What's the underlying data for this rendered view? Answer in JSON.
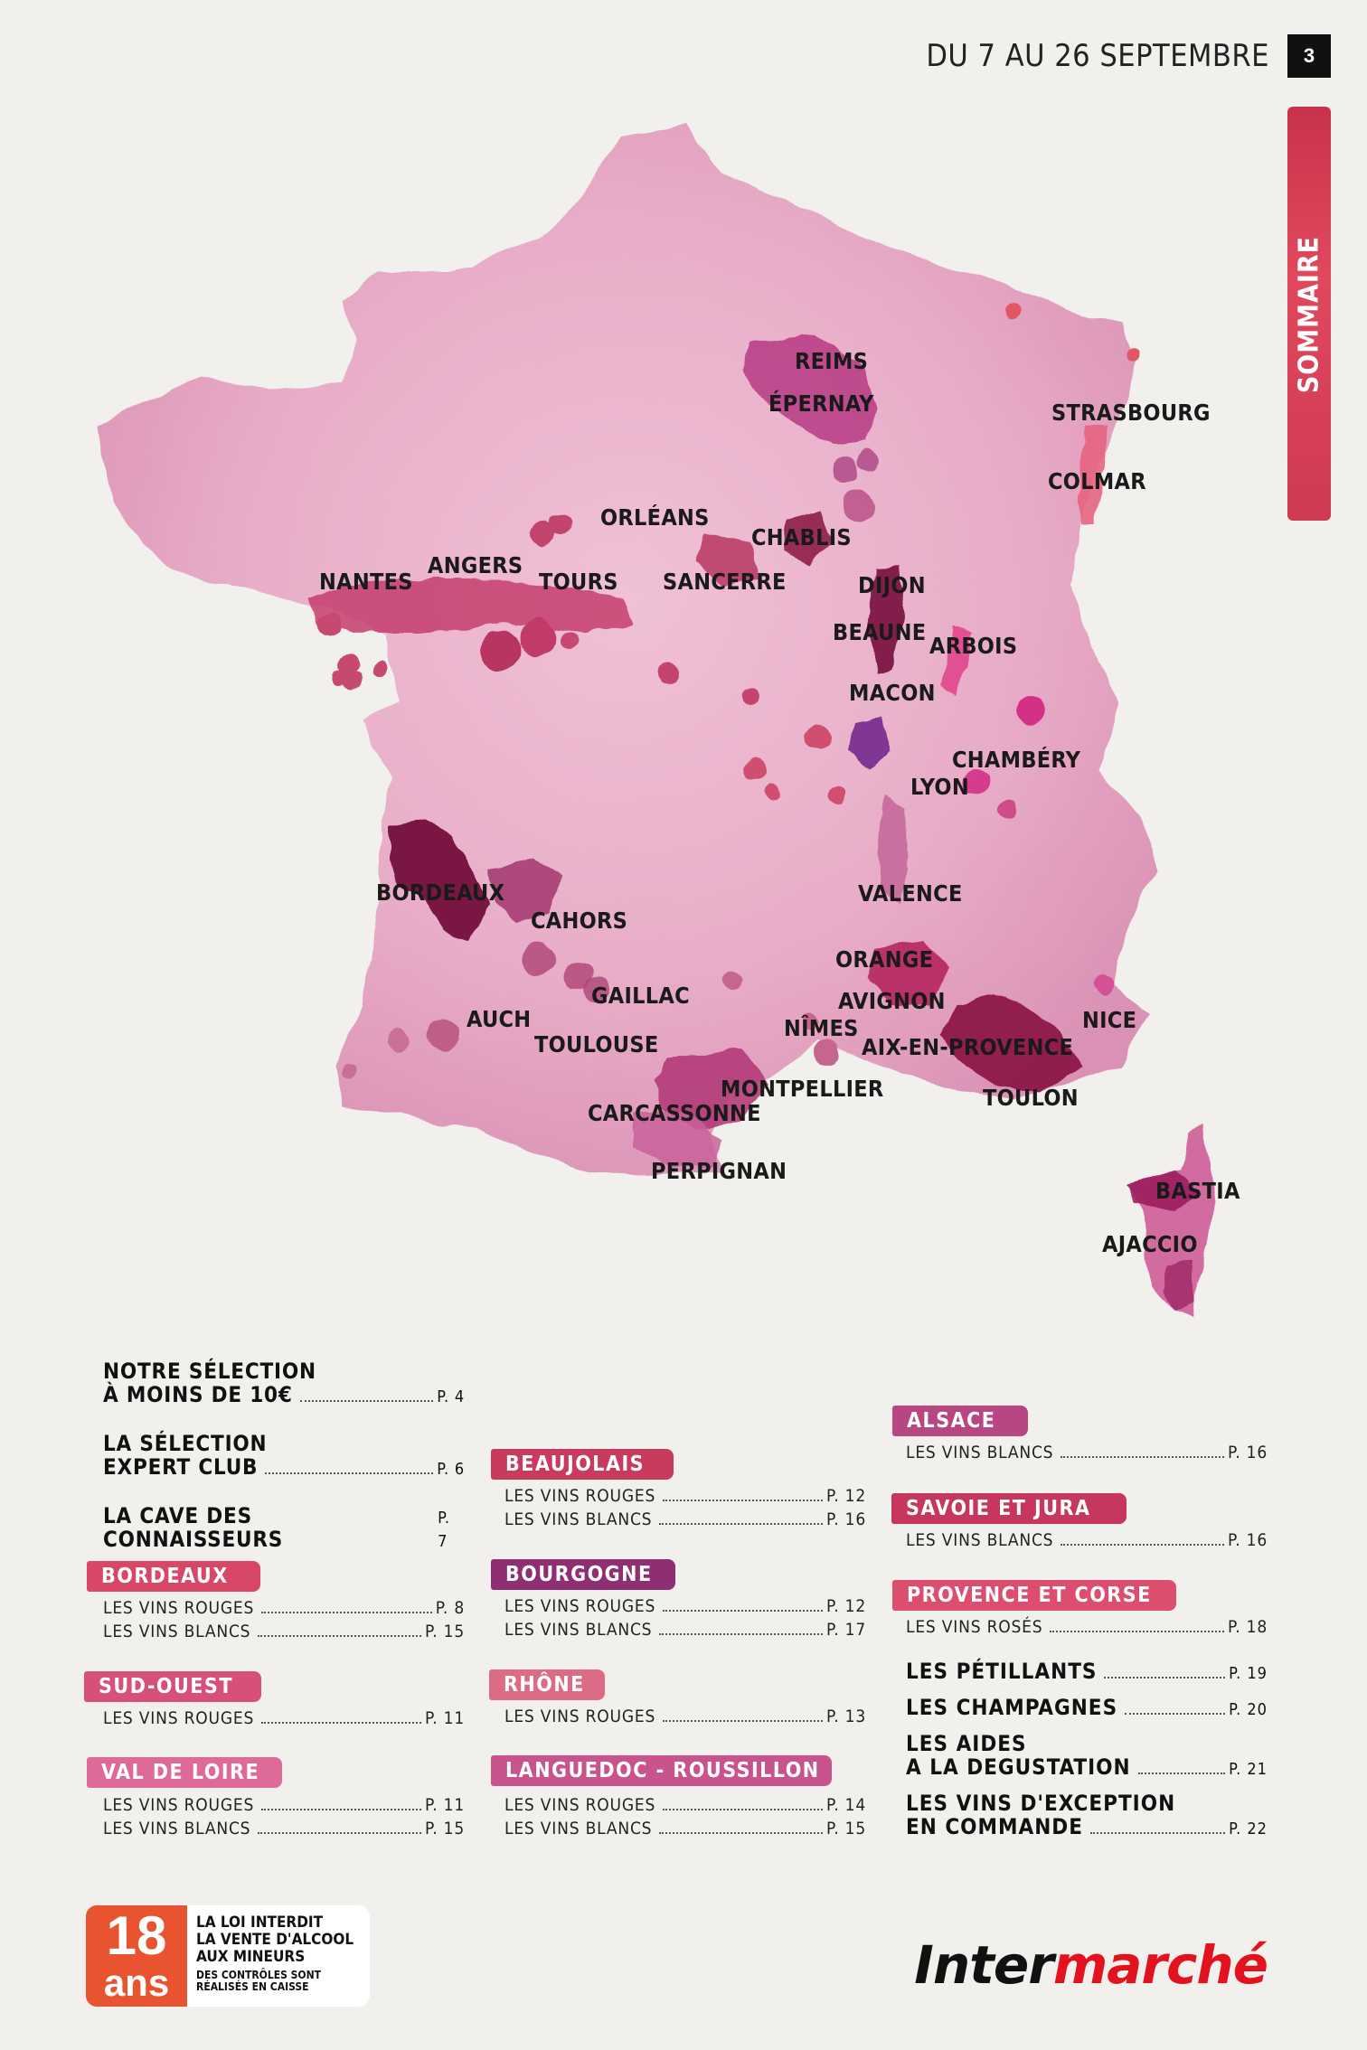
{
  "header": {
    "date_range": "DU 7 AU 26 SEPTEMBRE",
    "page_number": "3"
  },
  "side_tab": {
    "label": "SOMMAIRE"
  },
  "colors": {
    "accent": "#d93a53",
    "map_base": "#e6a5c3",
    "map_dark": "#8e1c48",
    "label_bg_pink": "#d84766",
    "label_bg_purple": "#8f2e73"
  },
  "map": {
    "cities": {
      "reims": "REIMS",
      "epernay": "ÉPERNAY",
      "strasbourg": "STRASBOURG",
      "colmar": "COLMAR",
      "orleans": "ORLÉANS",
      "chablis": "CHABLIS",
      "angers": "ANGERS",
      "nantes": "NANTES",
      "tours": "TOURS",
      "sancerre": "SANCERRE",
      "dijon": "DIJON",
      "beaune": "BEAUNE",
      "arbois": "ARBOIS",
      "macon": "MACON",
      "chambery": "CHAMBÉRY",
      "lyon": "LYON",
      "bordeaux": "BORDEAUX",
      "cahors": "CAHORS",
      "valence": "VALENCE",
      "orange": "ORANGE",
      "gaillac": "GAILLAC",
      "avignon": "AVIGNON",
      "auch": "AUCH",
      "nimes": "NÎMES",
      "nice": "NICE",
      "toulouse": "TOULOUSE",
      "aix": "AIX-EN-PROVENCE",
      "montpellier": "MONTPELLIER",
      "toulon": "TOULON",
      "carcassonne": "CARCASSONNE",
      "perpignan": "PERPIGNAN",
      "bastia": "BASTIA",
      "ajaccio": "AJACCIO"
    }
  },
  "toc": {
    "selection": {
      "line1": "NOTRE SÉLECTION",
      "line2": "À MOINS DE 10€",
      "page": "P. 4"
    },
    "expert": {
      "line1": "LA SÉLECTION",
      "line2": "EXPERT CLUB",
      "page": "P. 6"
    },
    "cave": {
      "label": "LA CAVE DES CONNAISSEURS",
      "page": "P. 7"
    },
    "bordeaux": {
      "title": "BORDEAUX",
      "rows": [
        {
          "label": "LES VINS ROUGES",
          "page": "P. 8"
        },
        {
          "label": "LES VINS BLANCS",
          "page": "P. 15"
        }
      ]
    },
    "sudouest": {
      "title": "SUD-OUEST",
      "rows": [
        {
          "label": "LES VINS ROUGES",
          "page": "P. 11"
        }
      ]
    },
    "valdeloire": {
      "title": "VAL DE LOIRE",
      "rows": [
        {
          "label": "LES VINS ROUGES",
          "page": "P. 11"
        },
        {
          "label": "LES VINS BLANCS",
          "page": "P. 15"
        }
      ]
    },
    "beaujolais": {
      "title": "BEAUJOLAIS",
      "rows": [
        {
          "label": "LES VINS ROUGES",
          "page": "P. 12"
        },
        {
          "label": "LES VINS BLANCS",
          "page": "P. 16"
        }
      ]
    },
    "bourgogne": {
      "title": "BOURGOGNE",
      "rows": [
        {
          "label": "LES VINS ROUGES",
          "page": "P. 12"
        },
        {
          "label": "LES VINS BLANCS",
          "page": "P. 17"
        }
      ]
    },
    "rhone": {
      "title": "RHÔNE",
      "rows": [
        {
          "label": "LES VINS ROUGES",
          "page": "P. 13"
        }
      ]
    },
    "languedoc": {
      "title": "LANGUEDOC - ROUSSILLON",
      "rows": [
        {
          "label": "LES VINS ROUGES",
          "page": "P. 14"
        },
        {
          "label": "LES VINS BLANCS",
          "page": "P. 15"
        }
      ]
    },
    "alsace": {
      "title": "ALSACE",
      "rows": [
        {
          "label": "LES VINS BLANCS",
          "page": "P. 16"
        }
      ]
    },
    "savoie": {
      "title": "SAVOIE ET JURA",
      "rows": [
        {
          "label": "LES VINS BLANCS",
          "page": "P. 16"
        }
      ]
    },
    "provence": {
      "title": "PROVENCE ET CORSE",
      "rows": [
        {
          "label": "LES VINS ROSÉS",
          "page": "P. 18"
        }
      ]
    },
    "petillants": {
      "label": "LES PÉTILLANTS",
      "page": "P. 19"
    },
    "champagnes": {
      "label": "LES CHAMPAGNES",
      "page": "P. 20"
    },
    "aides": {
      "line1": "LES AIDES",
      "line2": "A LA DEGUSTATION",
      "page": "P. 21"
    },
    "exception": {
      "line1": "LES VINS D'EXCEPTION",
      "line2": "EN COMMANDE",
      "page": "P. 22"
    }
  },
  "footer": {
    "badge_number": "18",
    "badge_unit": "ans",
    "law_line1": "LA LOI INTERDIT",
    "law_line2": "LA VENTE D'ALCOOL",
    "law_line3": "AUX MINEURS",
    "law_small1": "DES CONTRÔLES SONT",
    "law_small2": "RÉALISÉS EN CAISSE",
    "logo_part1": "Inter",
    "logo_part2": "marché"
  }
}
